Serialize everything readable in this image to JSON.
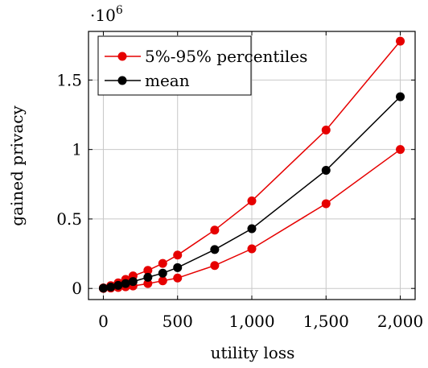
{
  "chart_data": {
    "type": "line",
    "xlabel": "utility loss",
    "ylabel": "gained privacy",
    "y_scale_label": "·10",
    "y_scale_exponent": "6",
    "xlim": [
      -100,
      2100
    ],
    "ylim": [
      -0.08,
      1.85
    ],
    "x_ticks": [
      0,
      500,
      1000,
      1500,
      2000
    ],
    "x_tick_labels": [
      "0",
      "500",
      "1,000",
      "1,500",
      "2,000"
    ],
    "y_ticks": [
      0,
      0.5,
      1,
      1.5
    ],
    "y_tick_labels": [
      "0",
      "0.5",
      "1",
      "1.5"
    ],
    "grid": true,
    "legend_position": "top-left",
    "series": [
      {
        "name": "5%-95% percentiles",
        "color": "#e60000",
        "marker": "circle",
        "x": [
          0,
          50,
          100,
          150,
          200,
          300,
          400,
          500,
          750,
          1000,
          1500,
          2000
        ],
        "y": [
          0.004,
          0.02,
          0.04,
          0.065,
          0.09,
          0.13,
          0.18,
          0.24,
          0.42,
          0.63,
          1.14,
          1.78
        ]
      },
      {
        "name": "",
        "color": "#e60000",
        "marker": "circle",
        "x": [
          0,
          50,
          100,
          150,
          200,
          300,
          400,
          500,
          750,
          1000,
          1500,
          2000
        ],
        "y": [
          0.0,
          0.003,
          0.007,
          0.012,
          0.018,
          0.035,
          0.055,
          0.075,
          0.165,
          0.285,
          0.61,
          1.0
        ]
      },
      {
        "name": "mean",
        "color": "#000000",
        "marker": "circle",
        "x": [
          0,
          50,
          100,
          150,
          200,
          300,
          400,
          500,
          750,
          1000,
          1500,
          2000
        ],
        "y": [
          0.002,
          0.01,
          0.022,
          0.035,
          0.05,
          0.08,
          0.11,
          0.15,
          0.28,
          0.43,
          0.85,
          1.38
        ]
      }
    ]
  }
}
